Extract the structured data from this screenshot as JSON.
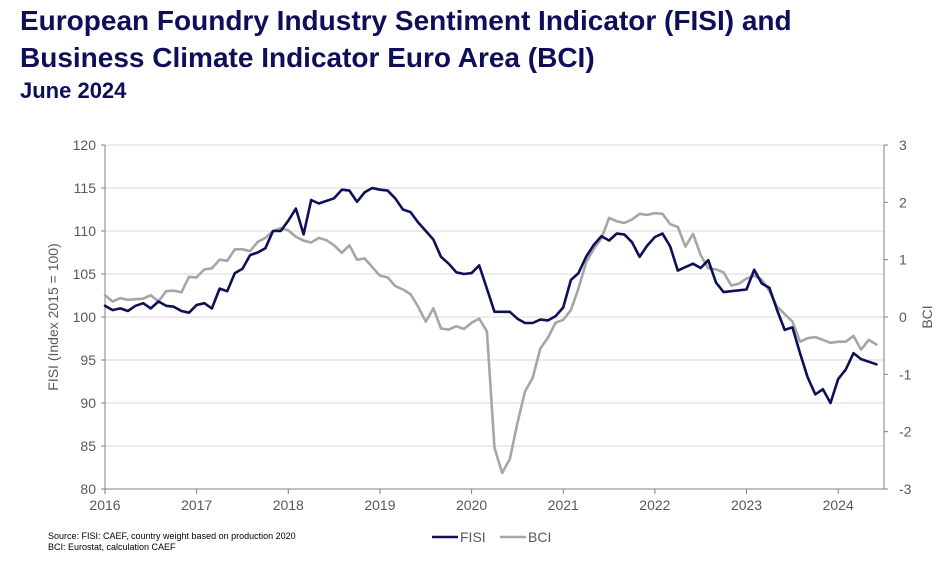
{
  "header": {
    "title_line1": "European Foundry Industry Sentiment Indicator (FISI) and",
    "title_line2": "Business Climate Indicator Euro Area (BCI)",
    "subtitle": "June 2024"
  },
  "footer": {
    "source_line1": "Source: FISI: CAEF, country weight based on production 2020",
    "source_line2": "BCI: Eurostat, calculation CAEF"
  },
  "colors": {
    "fisi": "#0d1059",
    "bci": "#a6a6a6",
    "grid": "#d9d9d9",
    "axis": "#808080",
    "title": "#0d1059"
  },
  "chart_data": {
    "type": "line",
    "xlabel": "",
    "ylabel": "FISI (Index 2015 = 100)",
    "y2label": "BCI",
    "xlim": [
      2016.0,
      2024.5
    ],
    "ylim": [
      80,
      120
    ],
    "y2lim": [
      -3,
      3
    ],
    "x_ticks": [
      "2016",
      "2017",
      "2018",
      "2019",
      "2020",
      "2021",
      "2022",
      "2023",
      "2024"
    ],
    "y_ticks": [
      "80",
      "85",
      "90",
      "95",
      "100",
      "105",
      "110",
      "115",
      "120"
    ],
    "y2_ticks": [
      "-3",
      "-2",
      "-1",
      "0",
      "1",
      "2",
      "3"
    ],
    "grid": true,
    "legend_position": "bottom-center",
    "series": [
      {
        "name": "FISI",
        "axis": "left",
        "x_start": "2016-01",
        "frequency": "monthly",
        "values": [
          101.3,
          100.8,
          101.0,
          100.7,
          101.3,
          101.6,
          101.0,
          101.8,
          101.3,
          101.2,
          100.7,
          100.5,
          101.4,
          101.6,
          101.0,
          103.3,
          103.0,
          105.1,
          105.6,
          107.2,
          107.5,
          108.0,
          110.0,
          110.0,
          111.2,
          112.6,
          109.6,
          113.6,
          113.2,
          113.5,
          113.8,
          114.8,
          114.7,
          113.4,
          114.5,
          115.0,
          114.8,
          114.7,
          113.8,
          112.5,
          112.2,
          111.0,
          110.0,
          109.0,
          107.0,
          106.2,
          105.2,
          105.0,
          105.1,
          106.0,
          103.3,
          100.6,
          100.6,
          100.6,
          99.8,
          99.3,
          99.3,
          99.7,
          99.6,
          100.1,
          101.1,
          104.3,
          105.1,
          107.0,
          108.4,
          109.4,
          108.9,
          109.7,
          109.6,
          108.7,
          107.0,
          108.3,
          109.3,
          109.7,
          108.2,
          105.4,
          105.8,
          106.2,
          105.7,
          106.6,
          104.0,
          102.9,
          103.0,
          103.1,
          103.2,
          105.5,
          103.9,
          103.4,
          100.8,
          98.5,
          98.8,
          95.8,
          93.0,
          91.0,
          91.6,
          90.0,
          92.8,
          93.9,
          95.8,
          95.1,
          94.8,
          94.5
        ]
      },
      {
        "name": "BCI",
        "axis": "right",
        "x_start": "2016-01",
        "frequency": "monthly",
        "values": [
          0.38,
          0.27,
          0.33,
          0.3,
          0.31,
          0.32,
          0.38,
          0.27,
          0.45,
          0.46,
          0.43,
          0.7,
          0.69,
          0.83,
          0.85,
          1.0,
          0.98,
          1.18,
          1.18,
          1.15,
          1.31,
          1.38,
          1.5,
          1.55,
          1.51,
          1.4,
          1.33,
          1.3,
          1.38,
          1.34,
          1.25,
          1.12,
          1.25,
          1.0,
          1.02,
          0.87,
          0.72,
          0.69,
          0.54,
          0.48,
          0.4,
          0.18,
          -0.08,
          0.15,
          -0.2,
          -0.22,
          -0.16,
          -0.21,
          -0.1,
          -0.03,
          -0.25,
          -2.28,
          -2.72,
          -2.48,
          -1.85,
          -1.3,
          -1.06,
          -0.55,
          -0.36,
          -0.1,
          -0.05,
          0.12,
          0.5,
          0.95,
          1.19,
          1.37,
          1.73,
          1.67,
          1.64,
          1.7,
          1.8,
          1.78,
          1.81,
          1.8,
          1.62,
          1.57,
          1.23,
          1.45,
          1.08,
          0.85,
          0.83,
          0.78,
          0.55,
          0.58,
          0.67,
          0.72,
          0.65,
          0.45,
          0.18,
          0.05,
          -0.08,
          -0.43,
          -0.37,
          -0.35,
          -0.4,
          -0.45,
          -0.43,
          -0.43,
          -0.33,
          -0.57,
          -0.4,
          -0.48
        ]
      }
    ]
  }
}
